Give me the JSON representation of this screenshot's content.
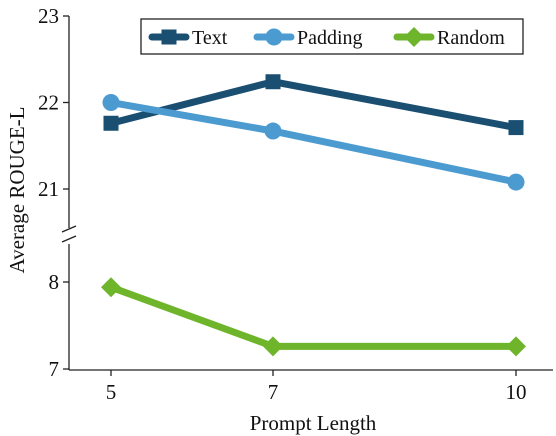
{
  "chart_data": {
    "type": "line",
    "x": [
      5,
      7,
      10
    ],
    "xlabel": "Prompt Length",
    "ylabel": "Average ROUGE-L",
    "x_ticks": [
      "5",
      "7",
      "10"
    ],
    "y_ticks_upper": [
      "21",
      "22",
      "23"
    ],
    "y_ticks_lower": [
      "7",
      "8"
    ],
    "ylim_upper": [
      20.5,
      23
    ],
    "ylim_lower": [
      7,
      8.5
    ],
    "broken_y_axis": true,
    "grid": false,
    "legend_position": "top-right",
    "series": [
      {
        "name": "Text",
        "values": [
          21.76,
          22.24,
          21.71
        ],
        "color": "#1b4f72",
        "marker": "square"
      },
      {
        "name": "Padding",
        "values": [
          22.0,
          21.67,
          21.08
        ],
        "color": "#4c9bd0",
        "marker": "circle"
      },
      {
        "name": "Random",
        "values": [
          7.94,
          7.26,
          7.26
        ],
        "color": "#6fb52c",
        "marker": "diamond"
      }
    ]
  }
}
